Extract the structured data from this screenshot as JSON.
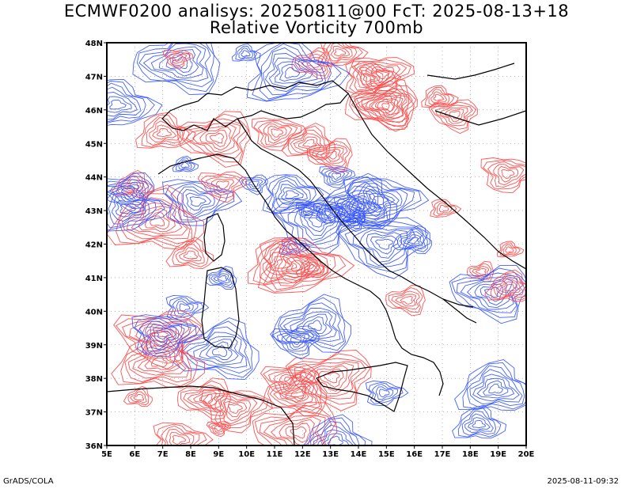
{
  "header": {
    "title_line1": "ECMWF0200 analisys: 20250811@00 FcT: 2025-08-13+18",
    "title_line2": "Relative Vorticity 700mb"
  },
  "map": {
    "lon_labels": [
      "5E",
      "6E",
      "7E",
      "8E",
      "9E",
      "10E",
      "11E",
      "12E",
      "13E",
      "14E",
      "15E",
      "16E",
      "17E",
      "18E",
      "19E",
      "20E"
    ],
    "lat_labels": [
      "36N",
      "37N",
      "38N",
      "39N",
      "40N",
      "41N",
      "42N",
      "43N",
      "44N",
      "45N",
      "46N",
      "47N",
      "48N"
    ],
    "lon_range": [
      5,
      20
    ],
    "lat_range": [
      36,
      48
    ],
    "colors": {
      "positive_vorticity": "#ff4040",
      "negative_vorticity": "#3050ff",
      "coastline": "#000000",
      "grid": "#888888"
    }
  },
  "footer": {
    "left": "GrADS/COLA",
    "right": "2025-08-11-09:32"
  }
}
